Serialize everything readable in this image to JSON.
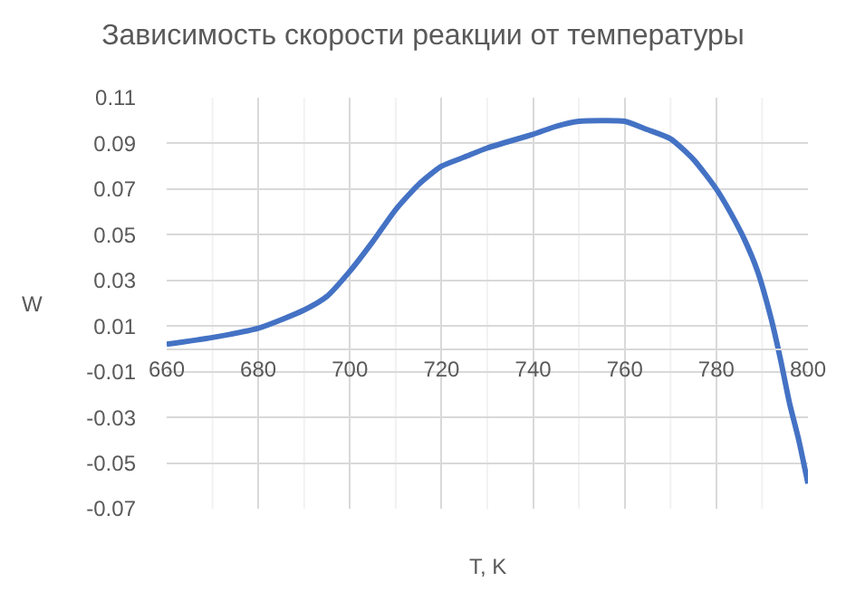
{
  "chart_data": {
    "type": "line",
    "title": "Зависимость скорости реакции от температуры",
    "xlabel": "T, K",
    "ylabel": "W",
    "x": [
      660,
      670,
      680,
      690,
      695,
      700,
      705,
      710,
      715,
      720,
      725,
      730,
      740,
      745,
      750,
      755,
      760,
      765,
      770,
      775,
      780,
      783,
      786,
      789,
      792,
      794,
      796,
      798,
      800
    ],
    "series": [
      {
        "color": "#4472c4",
        "values": [
          0.002,
          0.005,
          0.009,
          0.017,
          0.023,
          0.034,
          0.047,
          0.061,
          0.072,
          0.08,
          0.084,
          0.088,
          0.094,
          0.0975,
          0.0997,
          0.1,
          0.0997,
          0.096,
          0.092,
          0.083,
          0.07,
          0.06,
          0.0485,
          0.034,
          0.013,
          -0.0045,
          -0.024,
          -0.04,
          -0.059
        ]
      }
    ],
    "xlim": [
      660,
      800
    ],
    "xticks": [
      660,
      680,
      700,
      720,
      740,
      760,
      780,
      800
    ],
    "ylim": [
      -0.07,
      0.11
    ],
    "yticks": [
      -0.07,
      -0.05,
      -0.03,
      -0.01,
      0.01,
      0.03,
      0.05,
      0.07,
      0.09,
      0.11
    ],
    "grid": true,
    "line_style": "solid"
  }
}
